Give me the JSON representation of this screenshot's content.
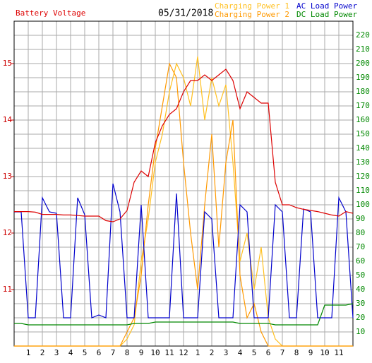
{
  "chart_data": {
    "type": "line",
    "title": "05/31/2018",
    "x": [
      0,
      0.5,
      1,
      1.5,
      2,
      2.5,
      3,
      3.5,
      4,
      4.5,
      5,
      5.5,
      6,
      6.5,
      7,
      7.5,
      8,
      8.5,
      9,
      9.5,
      10,
      10.5,
      11,
      11.5,
      12,
      12.5,
      13,
      13.5,
      14,
      14.5,
      15,
      15.5,
      16,
      16.5,
      17,
      17.5,
      18,
      18.5,
      19,
      19.5,
      20,
      20.5,
      21,
      21.5,
      22,
      22.5,
      23,
      23.5,
      24
    ],
    "xlim": [
      0,
      24
    ],
    "xticks": [
      1,
      2,
      3,
      4,
      5,
      6,
      7,
      8,
      9,
      10,
      11,
      12,
      {
        "value": 13,
        "label": "1"
      },
      {
        "value": 14,
        "label": "2"
      },
      {
        "value": 15,
        "label": "3"
      },
      {
        "value": 16,
        "label": "4"
      },
      {
        "value": 17,
        "label": "5"
      },
      {
        "value": 18,
        "label": "6"
      },
      {
        "value": 19,
        "label": "7"
      },
      {
        "value": 20,
        "label": "8"
      },
      {
        "value": 21,
        "label": "9"
      },
      {
        "value": 22,
        "label": "10"
      },
      {
        "value": 23,
        "label": "11"
      }
    ],
    "ylim": [
      10,
      15.75
    ],
    "yticks": [
      11,
      12,
      13,
      14,
      15
    ],
    "y2lim": [
      0,
      230
    ],
    "y2ticks": [
      10,
      20,
      30,
      40,
      50,
      60,
      70,
      80,
      90,
      100,
      110,
      120,
      130,
      140,
      150,
      160,
      170,
      180,
      190,
      200,
      210,
      220
    ],
    "grid": true,
    "series": [
      {
        "name": "Battery Voltage",
        "color": "#dd0000",
        "axis": "y",
        "values": [
          12.38,
          12.38,
          12.38,
          12.37,
          12.33,
          12.33,
          12.33,
          12.32,
          12.32,
          12.31,
          12.3,
          12.3,
          12.3,
          12.22,
          12.2,
          12.25,
          12.4,
          12.9,
          13.1,
          13.0,
          13.6,
          13.9,
          14.1,
          14.2,
          14.5,
          14.7,
          14.7,
          14.8,
          14.7,
          14.8,
          14.9,
          14.7,
          14.2,
          14.5,
          14.4,
          14.3,
          14.3,
          12.9,
          12.5,
          12.5,
          12.45,
          12.42,
          12.4,
          12.38,
          12.35,
          12.32,
          12.3,
          12.38,
          12.35
        ]
      },
      {
        "name": "Charging Power 1",
        "color": "#ffc020",
        "axis": "y2",
        "values": [
          0,
          0,
          0,
          0,
          0,
          0,
          0,
          0,
          0,
          0,
          0,
          0,
          0,
          0,
          0,
          0,
          5,
          15,
          60,
          90,
          130,
          150,
          180,
          200,
          190,
          170,
          205,
          160,
          190,
          170,
          185,
          130,
          60,
          80,
          40,
          70,
          20,
          5,
          0,
          0,
          0,
          0,
          0,
          0,
          0,
          0,
          0,
          0,
          0
        ]
      },
      {
        "name": "Charging Power 2",
        "color": "#ff9900",
        "axis": "y2",
        "values": [
          0,
          0,
          0,
          0,
          0,
          0,
          0,
          0,
          0,
          0,
          0,
          0,
          0,
          0,
          0,
          0,
          10,
          20,
          50,
          100,
          140,
          170,
          200,
          190,
          130,
          80,
          40,
          100,
          150,
          70,
          130,
          160,
          50,
          20,
          30,
          10,
          0,
          0,
          0,
          0,
          0,
          0,
          0,
          0,
          0,
          0,
          0,
          0,
          0
        ]
      },
      {
        "name": "AC Load Power",
        "color": "#0000cc",
        "axis": "y2",
        "values": [
          95,
          95,
          20,
          20,
          105,
          95,
          94,
          20,
          20,
          105,
          93,
          20,
          22,
          20,
          115,
          95,
          20,
          20,
          100,
          20,
          20,
          20,
          20,
          108,
          20,
          20,
          20,
          95,
          90,
          20,
          20,
          20,
          100,
          95,
          20,
          20,
          20,
          100,
          95,
          20,
          20,
          97,
          95,
          20,
          20,
          20,
          105,
          95,
          20
        ]
      },
      {
        "name": "DC Load Power",
        "color": "#008800",
        "axis": "y2",
        "values": [
          16,
          16,
          15,
          15,
          15,
          15,
          15,
          15,
          15,
          15,
          15,
          15,
          15,
          15,
          15,
          15,
          15,
          16,
          16,
          16,
          17,
          17,
          17,
          17,
          17,
          17,
          17,
          17,
          17,
          17,
          17,
          17,
          16,
          16,
          16,
          16,
          16,
          15,
          15,
          15,
          15,
          15,
          15,
          15,
          29,
          29,
          29,
          29,
          30
        ]
      }
    ]
  }
}
